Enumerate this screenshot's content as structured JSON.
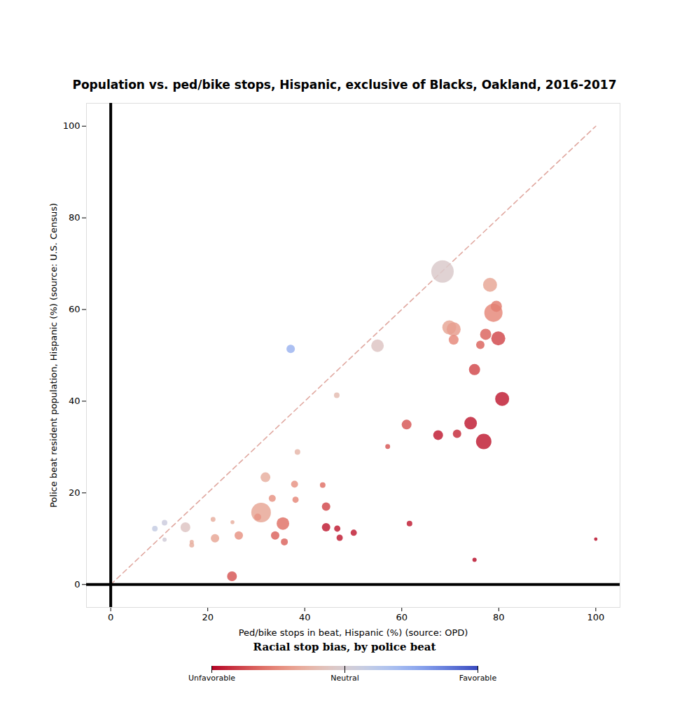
{
  "chart_data": {
    "type": "scatter",
    "title": "Population vs. ped/bike stops, Hispanic, exclusive of Blacks, Oakland, 2016-2017",
    "x_label": "Ped/bike stops in beat, Hispanic (%) (source: OPD)",
    "y_label": "Police beat resident population, Hispanic (%) (source: U.S. Census)",
    "xlim": [
      -5,
      105
    ],
    "ylim": [
      -5,
      105
    ],
    "xticks": [
      0,
      20,
      40,
      60,
      80,
      100
    ],
    "yticks": [
      0,
      20,
      40,
      60,
      80,
      100
    ],
    "grid": false,
    "diagonal": {
      "x": [
        0,
        100
      ],
      "y": [
        0,
        100
      ],
      "line_style": "dashed"
    },
    "x": [
      68.4,
      78.2,
      79.5,
      78.9,
      69.8,
      70.7,
      55.0,
      37.1,
      77.3,
      79.9,
      70.7,
      76.2,
      75.0,
      80.7,
      46.6,
      74.2,
      61.0,
      76.9,
      67.5,
      71.4,
      57.1,
      38.5,
      31.9,
      37.9,
      43.7,
      33.3,
      38.1,
      44.4,
      31.0,
      30.3,
      21.1,
      25.1,
      11.1,
      9.1,
      15.4,
      35.5,
      61.6,
      44.4,
      46.7,
      50.1,
      47.2,
      33.9,
      26.4,
      21.5,
      11.1,
      16.7,
      35.8,
      16.7,
      100,
      75.0,
      25.0
    ],
    "y": [
      68.3,
      65.4,
      60.7,
      59.3,
      56.1,
      55.7,
      52.1,
      51.4,
      54.6,
      53.7,
      53.4,
      52.3,
      46.9,
      40.5,
      41.3,
      35.2,
      34.9,
      31.2,
      32.6,
      32.9,
      30.1,
      28.9,
      23.4,
      21.9,
      21.7,
      18.8,
      18.5,
      17.0,
      15.7,
      14.7,
      14.2,
      13.6,
      13.5,
      12.2,
      12.5,
      13.3,
      13.3,
      12.5,
      12.2,
      11.3,
      10.2,
      10.7,
      10.7,
      10.1,
      9.8,
      9.3,
      9.3,
      8.6,
      9.9,
      5.4,
      1.8
    ],
    "sizes": [
      256,
      100,
      64,
      169,
      100,
      100,
      81,
      36,
      64,
      100,
      49,
      36,
      64,
      100,
      16,
      81,
      49,
      121,
      49,
      36,
      12,
      16,
      49,
      25,
      16,
      25,
      20,
      36,
      196,
      25,
      12,
      8,
      16,
      16,
      49,
      81,
      16,
      36,
      20,
      20,
      20,
      36,
      36,
      36,
      9,
      9,
      25,
      12,
      6,
      9,
      49
    ],
    "bias": [
      -0.05,
      -0.35,
      -0.55,
      -0.5,
      -0.35,
      -0.4,
      -0.1,
      0.45,
      -0.65,
      -0.75,
      -0.5,
      -0.65,
      -0.75,
      -0.9,
      -0.2,
      -0.9,
      -0.7,
      -0.9,
      -0.9,
      -0.85,
      -0.7,
      -0.25,
      -0.3,
      -0.45,
      -0.6,
      -0.45,
      -0.5,
      -0.75,
      -0.35,
      -0.45,
      -0.3,
      -0.3,
      0.1,
      0.15,
      -0.1,
      -0.6,
      -0.9,
      -0.9,
      -0.9,
      -0.9,
      -0.9,
      -0.65,
      -0.45,
      -0.35,
      0.05,
      -0.3,
      -0.65,
      -0.3,
      -0.95,
      -0.95,
      -0.7
    ],
    "color_label": "Racial stop bias, by police beat",
    "color_lim": [
      -1,
      1
    ],
    "color_ticks": [
      {
        "value": -1,
        "label": "Unfavorable"
      },
      {
        "value": 0,
        "label": "Neutral"
      },
      {
        "value": 1,
        "label": "Favorable"
      }
    ]
  }
}
